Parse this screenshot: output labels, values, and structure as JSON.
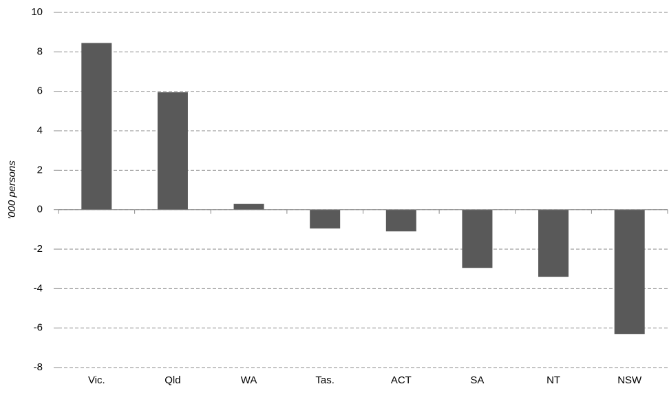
{
  "chart_data": {
    "type": "bar",
    "y_label": "'000 persons",
    "categories": [
      "Vic.",
      "Qld",
      "WA",
      "Tas.",
      "ACT",
      "SA",
      "NT",
      "NSW"
    ],
    "values": [
      8.45,
      5.95,
      0.3,
      -0.95,
      -1.1,
      -2.95,
      -3.4,
      -6.3
    ],
    "color": "#595959",
    "ylim": [
      -8,
      10
    ],
    "yticks": [
      -8,
      -6,
      -4,
      -2,
      0,
      2,
      4,
      6,
      8,
      10
    ],
    "grid": true
  }
}
